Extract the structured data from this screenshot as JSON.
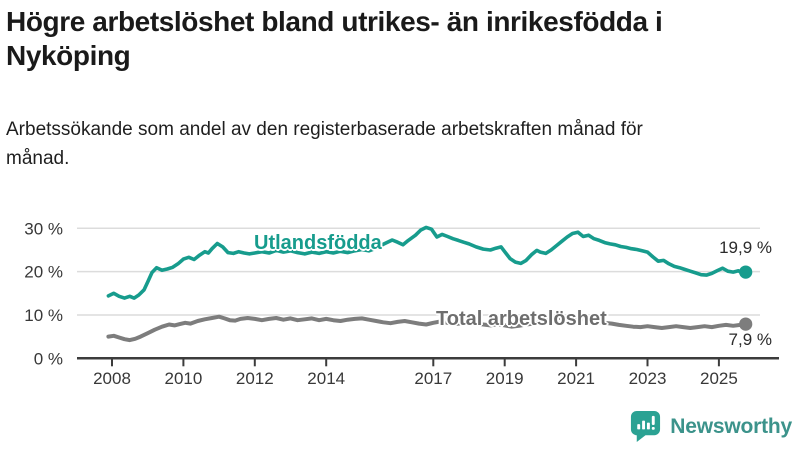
{
  "chart_data": {
    "type": "line",
    "title": "Högre arbetslöshet bland utrikes- än inrikesfödda i Nyköping",
    "subtitle": "Arbetssökande som andel av den registerbaserade arbetskraften månad för månad.",
    "grid": "horizontal",
    "legend_position": "inline-labels",
    "x_axis": {
      "ticks": [
        2008,
        2010,
        2012,
        2014,
        2017,
        2019,
        2021,
        2023,
        2025
      ],
      "tick_labels": [
        "2008",
        "2010",
        "2012",
        "2014",
        "2017",
        "2019",
        "2021",
        "2023",
        "2025"
      ],
      "range": [
        2007.83,
        2026.3
      ]
    },
    "y_axis": {
      "ticks": [
        0,
        10,
        20,
        30
      ],
      "tick_labels": [
        "0 %",
        "10 %",
        "20 %",
        "30 %"
      ],
      "range": [
        0,
        32
      ],
      "unit": "%"
    },
    "style": {
      "grid_color": "#dcdcdc",
      "axis_color": "#3c3c3c",
      "tick_text_color": "#383838"
    },
    "series": [
      {
        "name": "Utlandsfödda",
        "color": "#179c8d",
        "line_width": 3.6,
        "end_value": 19.9,
        "end_label": "19,9 %",
        "points": [
          [
            2007.9,
            14.4
          ],
          [
            2008.05,
            15.0
          ],
          [
            2008.2,
            14.3
          ],
          [
            2008.35,
            13.9
          ],
          [
            2008.5,
            14.3
          ],
          [
            2008.62,
            13.9
          ],
          [
            2008.75,
            14.6
          ],
          [
            2008.9,
            15.8
          ],
          [
            2009.0,
            17.6
          ],
          [
            2009.12,
            19.8
          ],
          [
            2009.25,
            20.9
          ],
          [
            2009.4,
            20.3
          ],
          [
            2009.55,
            20.6
          ],
          [
            2009.7,
            21.0
          ],
          [
            2009.85,
            21.8
          ],
          [
            2010.0,
            22.9
          ],
          [
            2010.15,
            23.3
          ],
          [
            2010.3,
            22.8
          ],
          [
            2010.45,
            23.8
          ],
          [
            2010.6,
            24.6
          ],
          [
            2010.7,
            24.3
          ],
          [
            2010.8,
            25.3
          ],
          [
            2010.95,
            26.5
          ],
          [
            2011.1,
            25.7
          ],
          [
            2011.25,
            24.4
          ],
          [
            2011.4,
            24.2
          ],
          [
            2011.55,
            24.6
          ],
          [
            2011.7,
            24.3
          ],
          [
            2011.85,
            24.1
          ],
          [
            2012.0,
            24.3
          ],
          [
            2012.2,
            24.6
          ],
          [
            2012.4,
            24.3
          ],
          [
            2012.6,
            24.9
          ],
          [
            2012.8,
            24.5
          ],
          [
            2013.0,
            24.8
          ],
          [
            2013.2,
            24.4
          ],
          [
            2013.4,
            24.1
          ],
          [
            2013.6,
            24.5
          ],
          [
            2013.8,
            24.2
          ],
          [
            2014.0,
            24.6
          ],
          [
            2014.2,
            24.3
          ],
          [
            2014.4,
            24.7
          ],
          [
            2014.6,
            24.4
          ],
          [
            2014.8,
            24.8
          ],
          [
            2015.0,
            25.1
          ],
          [
            2015.2,
            24.8
          ],
          [
            2015.4,
            25.4
          ],
          [
            2015.6,
            26.3
          ],
          [
            2015.85,
            27.3
          ],
          [
            2016.0,
            26.8
          ],
          [
            2016.15,
            26.2
          ],
          [
            2016.3,
            27.2
          ],
          [
            2016.5,
            28.4
          ],
          [
            2016.65,
            29.6
          ],
          [
            2016.8,
            30.2
          ],
          [
            2016.95,
            29.8
          ],
          [
            2017.1,
            28.0
          ],
          [
            2017.25,
            28.6
          ],
          [
            2017.4,
            28.1
          ],
          [
            2017.55,
            27.6
          ],
          [
            2017.7,
            27.2
          ],
          [
            2017.85,
            26.8
          ],
          [
            2018.0,
            26.4
          ],
          [
            2018.2,
            25.7
          ],
          [
            2018.4,
            25.2
          ],
          [
            2018.6,
            25.0
          ],
          [
            2018.75,
            25.4
          ],
          [
            2018.9,
            25.7
          ],
          [
            2019.0,
            24.6
          ],
          [
            2019.15,
            23.0
          ],
          [
            2019.3,
            22.2
          ],
          [
            2019.45,
            21.9
          ],
          [
            2019.6,
            22.6
          ],
          [
            2019.75,
            23.9
          ],
          [
            2019.9,
            24.9
          ],
          [
            2020.0,
            24.5
          ],
          [
            2020.15,
            24.2
          ],
          [
            2020.3,
            25.0
          ],
          [
            2020.45,
            26.0
          ],
          [
            2020.6,
            27.0
          ],
          [
            2020.75,
            28.0
          ],
          [
            2020.9,
            28.8
          ],
          [
            2021.05,
            29.1
          ],
          [
            2021.2,
            28.1
          ],
          [
            2021.35,
            28.4
          ],
          [
            2021.5,
            27.6
          ],
          [
            2021.65,
            27.2
          ],
          [
            2021.8,
            26.7
          ],
          [
            2021.95,
            26.4
          ],
          [
            2022.1,
            26.2
          ],
          [
            2022.25,
            25.8
          ],
          [
            2022.4,
            25.6
          ],
          [
            2022.55,
            25.3
          ],
          [
            2022.7,
            25.1
          ],
          [
            2022.85,
            24.8
          ],
          [
            2023.0,
            24.5
          ],
          [
            2023.15,
            23.4
          ],
          [
            2023.3,
            22.4
          ],
          [
            2023.45,
            22.6
          ],
          [
            2023.6,
            21.8
          ],
          [
            2023.75,
            21.2
          ],
          [
            2023.9,
            20.9
          ],
          [
            2024.05,
            20.5
          ],
          [
            2024.2,
            20.1
          ],
          [
            2024.35,
            19.7
          ],
          [
            2024.5,
            19.3
          ],
          [
            2024.65,
            19.2
          ],
          [
            2024.8,
            19.6
          ],
          [
            2024.95,
            20.2
          ],
          [
            2025.1,
            20.8
          ],
          [
            2025.25,
            20.1
          ],
          [
            2025.4,
            19.9
          ],
          [
            2025.55,
            20.2
          ],
          [
            2025.65,
            19.7
          ],
          [
            2025.75,
            19.9
          ]
        ]
      },
      {
        "name": "Total arbetslöshet",
        "color": "#7d7d7d",
        "label_color": "#6e6e6e",
        "line_width": 4,
        "end_value": 7.9,
        "end_label": "7,9 %",
        "points": [
          [
            2007.9,
            5.0
          ],
          [
            2008.05,
            5.2
          ],
          [
            2008.2,
            4.8
          ],
          [
            2008.35,
            4.4
          ],
          [
            2008.5,
            4.2
          ],
          [
            2008.65,
            4.5
          ],
          [
            2008.8,
            5.0
          ],
          [
            2009.0,
            5.8
          ],
          [
            2009.2,
            6.6
          ],
          [
            2009.4,
            7.3
          ],
          [
            2009.6,
            7.8
          ],
          [
            2009.75,
            7.6
          ],
          [
            2009.9,
            7.9
          ],
          [
            2010.05,
            8.2
          ],
          [
            2010.2,
            8.0
          ],
          [
            2010.4,
            8.6
          ],
          [
            2010.6,
            9.0
          ],
          [
            2010.8,
            9.3
          ],
          [
            2011.0,
            9.6
          ],
          [
            2011.15,
            9.2
          ],
          [
            2011.3,
            8.8
          ],
          [
            2011.45,
            8.7
          ],
          [
            2011.6,
            9.1
          ],
          [
            2011.8,
            9.3
          ],
          [
            2012.0,
            9.1
          ],
          [
            2012.2,
            8.8
          ],
          [
            2012.4,
            9.1
          ],
          [
            2012.6,
            9.3
          ],
          [
            2012.8,
            8.9
          ],
          [
            2013.0,
            9.2
          ],
          [
            2013.2,
            8.8
          ],
          [
            2013.4,
            9.0
          ],
          [
            2013.6,
            9.2
          ],
          [
            2013.8,
            8.8
          ],
          [
            2014.0,
            9.1
          ],
          [
            2014.2,
            8.8
          ],
          [
            2014.4,
            8.6
          ],
          [
            2014.6,
            8.9
          ],
          [
            2014.8,
            9.1
          ],
          [
            2015.0,
            9.2
          ],
          [
            2015.2,
            8.9
          ],
          [
            2015.4,
            8.6
          ],
          [
            2015.6,
            8.3
          ],
          [
            2015.8,
            8.1
          ],
          [
            2016.0,
            8.4
          ],
          [
            2016.2,
            8.6
          ],
          [
            2016.4,
            8.3
          ],
          [
            2016.6,
            8.0
          ],
          [
            2016.8,
            7.8
          ],
          [
            2017.0,
            8.2
          ],
          [
            2017.2,
            8.5
          ],
          [
            2017.4,
            8.2
          ],
          [
            2017.6,
            7.9
          ],
          [
            2017.8,
            8.1
          ],
          [
            2018.0,
            8.4
          ],
          [
            2018.2,
            8.1
          ],
          [
            2018.4,
            7.8
          ],
          [
            2018.6,
            7.6
          ],
          [
            2018.8,
            7.9
          ],
          [
            2019.0,
            7.6
          ],
          [
            2019.2,
            7.3
          ],
          [
            2019.4,
            7.5
          ],
          [
            2019.6,
            7.8
          ],
          [
            2019.8,
            8.0
          ],
          [
            2020.0,
            8.3
          ],
          [
            2020.2,
            8.8
          ],
          [
            2020.4,
            9.2
          ],
          [
            2020.6,
            9.4
          ],
          [
            2020.8,
            9.2
          ],
          [
            2021.0,
            9.3
          ],
          [
            2021.2,
            9.0
          ],
          [
            2021.4,
            8.7
          ],
          [
            2021.6,
            8.4
          ],
          [
            2021.8,
            8.2
          ],
          [
            2022.0,
            8.0
          ],
          [
            2022.2,
            7.7
          ],
          [
            2022.4,
            7.5
          ],
          [
            2022.6,
            7.3
          ],
          [
            2022.8,
            7.2
          ],
          [
            2023.0,
            7.4
          ],
          [
            2023.2,
            7.2
          ],
          [
            2023.4,
            7.0
          ],
          [
            2023.6,
            7.2
          ],
          [
            2023.8,
            7.4
          ],
          [
            2024.0,
            7.2
          ],
          [
            2024.2,
            7.0
          ],
          [
            2024.4,
            7.2
          ],
          [
            2024.6,
            7.4
          ],
          [
            2024.8,
            7.2
          ],
          [
            2025.0,
            7.5
          ],
          [
            2025.2,
            7.7
          ],
          [
            2025.4,
            7.5
          ],
          [
            2025.6,
            7.7
          ],
          [
            2025.75,
            7.9
          ]
        ]
      }
    ]
  },
  "branding": {
    "logo_text": "Newsworthy",
    "logo_icon": "bar-chart-speech-bubble-icon",
    "brand_color": "#2ba293",
    "text_color": "#3c938b"
  }
}
